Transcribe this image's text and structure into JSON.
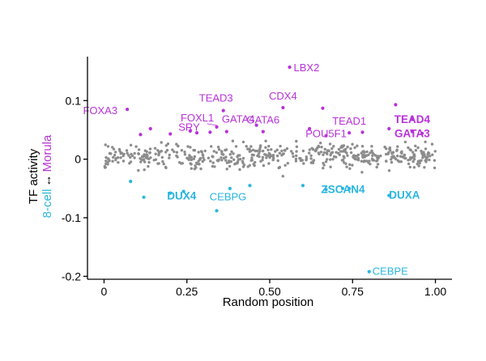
{
  "chart_data": {
    "type": "scatter",
    "title": "",
    "xlabel": "Random position",
    "ylabel": {
      "line1": "TF activity",
      "line2_left": "8-cell",
      "line2_arrow": "↔",
      "line2_right": "Morula"
    },
    "xlim": [
      -0.05,
      1.05
    ],
    "ylim": [
      -0.205,
      0.175
    ],
    "xticks": [
      {
        "value": 0,
        "label": "0"
      },
      {
        "value": 0.25,
        "label": "0.25"
      },
      {
        "value": 0.5,
        "label": "0.50"
      },
      {
        "value": 0.75,
        "label": "0.75"
      },
      {
        "value": 1.0,
        "label": "1.00"
      }
    ],
    "yticks": [
      {
        "value": 0.1,
        "label": "0.1"
      },
      {
        "value": 0,
        "label": "0"
      },
      {
        "value": -0.1,
        "label": "-0.1"
      },
      {
        "value": -0.2,
        "label": "-0.2"
      }
    ],
    "grid": false,
    "legend": "none",
    "colors": {
      "morula": "#b832d9",
      "eight_cell": "#29b6e0",
      "background": "#8c8c8c",
      "axis": "#000000"
    },
    "background_cloud": {
      "description_of_group": "non-significant TFs",
      "count": 520,
      "x_range": [
        0,
        1
      ],
      "y_mean": 0.005,
      "y_spread": 0.035
    },
    "morula_points": [
      {
        "x": 0.07,
        "y": 0.085,
        "label": "FOXA3",
        "bold": false
      },
      {
        "x": 0.56,
        "y": 0.157,
        "label": "LBX2",
        "bold": false
      },
      {
        "x": 0.36,
        "y": 0.083,
        "label": "TEAD3",
        "bold": false
      },
      {
        "x": 0.54,
        "y": 0.088,
        "label": "CDX4",
        "bold": false
      },
      {
        "x": 0.34,
        "y": 0.055,
        "label": "FOXL1",
        "bold": false
      },
      {
        "x": 0.37,
        "y": 0.047,
        "label": "GATA4",
        "bold": false
      },
      {
        "x": 0.48,
        "y": 0.047,
        "label": "GATA6",
        "bold": false
      },
      {
        "x": 0.2,
        "y": 0.043,
        "label": "SRY",
        "bold": false
      },
      {
        "x": 0.74,
        "y": 0.045,
        "label": "TEAD1",
        "bold": false
      },
      {
        "x": 0.67,
        "y": 0.04,
        "label": "POU5F1",
        "bold": false
      },
      {
        "x": 0.93,
        "y": 0.07,
        "label": "TEAD4",
        "bold": true
      },
      {
        "x": 0.93,
        "y": 0.047,
        "label": "GATA3",
        "bold": true
      },
      {
        "x": 0.66,
        "y": 0.087,
        "label": "",
        "bold": false
      },
      {
        "x": 0.88,
        "y": 0.093,
        "label": "",
        "bold": false
      },
      {
        "x": 0.14,
        "y": 0.052,
        "label": "",
        "bold": false
      },
      {
        "x": 0.46,
        "y": 0.058,
        "label": "",
        "bold": false
      },
      {
        "x": 0.62,
        "y": 0.052,
        "label": "",
        "bold": false
      },
      {
        "x": 0.78,
        "y": 0.046,
        "label": "",
        "bold": false
      },
      {
        "x": 0.86,
        "y": 0.052,
        "label": "",
        "bold": false
      },
      {
        "x": 0.28,
        "y": 0.045,
        "label": "",
        "bold": false
      },
      {
        "x": 0.11,
        "y": 0.042,
        "label": "",
        "bold": false
      },
      {
        "x": 0.26,
        "y": 0.048,
        "label": "",
        "bold": false
      },
      {
        "x": 0.32,
        "y": 0.046,
        "label": "",
        "bold": false
      },
      {
        "x": 0.96,
        "y": 0.044,
        "label": "",
        "bold": false
      }
    ],
    "eight_cell_points": [
      {
        "x": 0.2,
        "y": -0.058,
        "label": "DUX4",
        "bold": true
      },
      {
        "x": 0.34,
        "y": -0.088,
        "label": "CEBPG",
        "bold": false
      },
      {
        "x": 0.67,
        "y": -0.052,
        "label": "ZSCAN4",
        "bold": true
      },
      {
        "x": 0.86,
        "y": -0.062,
        "label": "DUXA",
        "bold": true
      },
      {
        "x": 0.8,
        "y": -0.192,
        "label": "CEBPE",
        "bold": false
      },
      {
        "x": 0.08,
        "y": -0.038,
        "label": "",
        "bold": false
      },
      {
        "x": 0.12,
        "y": -0.065,
        "label": "",
        "bold": false
      },
      {
        "x": 0.24,
        "y": -0.055,
        "label": "",
        "bold": false
      },
      {
        "x": 0.44,
        "y": -0.045,
        "label": "",
        "bold": false
      },
      {
        "x": 0.6,
        "y": -0.045,
        "label": "",
        "bold": false
      },
      {
        "x": 0.72,
        "y": -0.05,
        "label": "",
        "bold": false
      },
      {
        "x": 0.74,
        "y": -0.05,
        "label": "",
        "bold": false
      },
      {
        "x": 0.38,
        "y": -0.05,
        "label": "",
        "bold": false
      }
    ]
  }
}
